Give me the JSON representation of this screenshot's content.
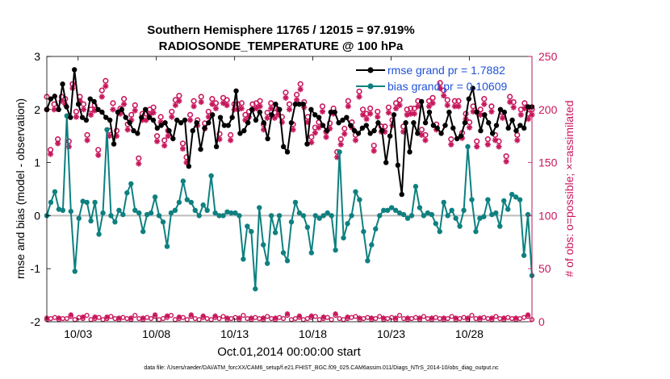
{
  "chart_data": {
    "type": "line",
    "title_line1": "Southern Hemisphere 11765 / 12015 = 97.919%",
    "title_line2": "RADIOSONDE_TEMPERATURE @ 100 hPa",
    "xlabel": "Oct.01,2014 00:00:00 start",
    "ylabel_left": "rmse and bias (model - observation)",
    "ylabel_right": "# of obs: o=possible; ×=assimilated",
    "ylim_left": [
      -2,
      3
    ],
    "ylim_right": [
      0,
      250
    ],
    "xlim": [
      1.0,
      32.0
    ],
    "xticks": [
      3,
      8,
      13,
      18,
      23,
      28
    ],
    "xtick_labels": [
      "10/03",
      "10/08",
      "10/13",
      "10/18",
      "10/23",
      "10/28"
    ],
    "yticks_left": [
      "-2",
      "-1",
      "0",
      "1",
      "2",
      "3"
    ],
    "yticks_right": [
      "0",
      "50",
      "100",
      "150",
      "200",
      "250"
    ],
    "grid": false,
    "legend_position": "top-right",
    "footnote": "data file: /Users/raeder/DAI/ATM_forcXX/CAM6_setup/f.e21.FHIST_BGC.f09_025.CAM6assim.011/Diags_NTrS_2014-10/obs_diag_output.nc",
    "colors": {
      "rmse": "#000000",
      "bias": "#0e8080",
      "obs": "#c8175d",
      "zero_line": "#bcbcbc"
    },
    "series": [
      {
        "name": "rmse grand pr = 1.7882",
        "axis": "left",
        "values": [
          2.0,
          2.2,
          2.25,
          2.0,
          2.48,
          2.05,
          1.85,
          2.75,
          2.1,
          1.85,
          1.8,
          2.2,
          2.15,
          2.0,
          1.95,
          1.85,
          1.8,
          1.35,
          1.95,
          2.0,
          1.85,
          1.75,
          1.6,
          1.55,
          1.85,
          2.0,
          1.85,
          1.8,
          1.65,
          1.7,
          1.75,
          1.6,
          1.45,
          1.8,
          1.75,
          1.8,
          0.93,
          1.6,
          1.75,
          1.25,
          1.65,
          1.75,
          1.9,
          1.3,
          1.85,
          1.7,
          1.7,
          1.85,
          2.35,
          1.55,
          1.6,
          1.75,
          2.0,
          1.8,
          1.95,
          1.75,
          1.45,
          1.9,
          2.1,
          2.0,
          1.3,
          1.2,
          1.75,
          2.1,
          2.1,
          2.1,
          1.35,
          2.0,
          1.9,
          1.85,
          1.7,
          1.6,
          1.95,
          1.95,
          1.75,
          1.8,
          1.85,
          1.7,
          1.6,
          1.55,
          1.65,
          1.7,
          1.55,
          1.6,
          1.75,
          1.6,
          1.0,
          1.5,
          1.9,
          0.95,
          0.4,
          1.75,
          1.2,
          1.75,
          1.55,
          2.15,
          1.75,
          1.95,
          1.7,
          1.65,
          1.55,
          1.7,
          1.95,
          1.65,
          1.45,
          1.5,
          1.75,
          2.2,
          2.4,
          1.95,
          1.6,
          1.9,
          1.75,
          1.55,
          1.7,
          2.0,
          1.95,
          1.65,
          1.8,
          1.6,
          1.7,
          1.65,
          2.05,
          2.05
        ]
      },
      {
        "name": "bias grand pr = 0.10609",
        "axis": "left",
        "values": [
          0.0,
          0.25,
          0.45,
          0.12,
          0.1,
          1.88,
          0.08,
          -1.05,
          -0.05,
          0.27,
          0.25,
          -0.1,
          0.25,
          -0.35,
          0.05,
          1.62,
          0.0,
          -0.12,
          0.1,
          0.02,
          0.43,
          0.6,
          0.1,
          0.05,
          -0.3,
          0.02,
          0.05,
          0.35,
          0.0,
          -0.12,
          -0.58,
          0.05,
          0.1,
          0.25,
          0.65,
          0.3,
          0.25,
          0.1,
          0.0,
          0.2,
          0.1,
          0.75,
          0.05,
          0.0,
          0.0,
          0.07,
          0.05,
          0.05,
          0.0,
          -0.82,
          -0.2,
          -0.3,
          -1.38,
          0.15,
          -0.55,
          -0.9,
          0.0,
          -0.32,
          0.0,
          -0.7,
          -0.85,
          -0.12,
          0.25,
          0.05,
          0.0,
          -0.22,
          -0.7,
          0.0,
          -0.05,
          0.0,
          0.05,
          0.0,
          -0.65,
          1.2,
          -0.42,
          -0.15,
          0.0,
          0.45,
          0.3,
          -0.3,
          -0.85,
          -0.55,
          -0.25,
          0.0,
          0.1,
          0.1,
          0.15,
          0.1,
          0.05,
          0.02,
          -0.05,
          0.0,
          0.55,
          0.15,
          0.0,
          0.05,
          0.02,
          -0.15,
          -0.3,
          0.25,
          0.0,
          0.1,
          -0.05,
          -0.2,
          0.1,
          1.3,
          0.3,
          -0.3,
          -0.05,
          -0.02,
          0.3,
          0.02,
          0.05,
          -0.2,
          0.28,
          0.12,
          0.4,
          0.35,
          0.3,
          -0.75,
          0.02,
          -1.13
        ]
      },
      {
        "name": "obs possible",
        "axis": "right",
        "marker": "o",
        "values": [
          212,
          162,
          205,
          172,
          212,
          210,
          170,
          224,
          198,
          212,
          205,
          176,
          200,
          204,
          162,
          218,
          227,
          180,
          206,
          180,
          201,
          210,
          186,
          195,
          204,
          154,
          196,
          196,
          200,
          202,
          175,
          193,
          171,
          180,
          198,
          209,
          213,
          168,
          155,
          195,
          208,
          190,
          212,
          187,
          198,
          210,
          206,
          177,
          211,
          209,
          176,
          205,
          205,
          206,
          195,
          198,
          205,
          206,
          208,
          186,
          197,
          206,
          197,
          200,
          193,
          216,
          205,
          186,
          214,
          224,
          207,
          193,
          174,
          183,
          188,
          203,
          179,
          187,
          201,
          160,
          172,
          182,
          208,
          188,
          176,
          217,
          200,
          196,
          201,
          166,
          198,
          184,
          184,
          202,
          190,
          206,
          209,
          184,
          200,
          201,
          201,
          208,
          181,
          176,
          208,
          211,
          186,
          225,
          218,
          209,
          172,
          208,
          208,
          178,
          196,
          188,
          203,
          170,
          200,
          210,
          172,
          203,
          176,
          170,
          197,
          156,
          212,
          207,
          176,
          200,
          206,
          196,
          200
        ]
      },
      {
        "name": "obs assimilated",
        "axis": "right",
        "marker": "*",
        "values": [
          200,
          158,
          200,
          168,
          208,
          205,
          165,
          220,
          193,
          208,
          200,
          171,
          195,
          199,
          157,
          212,
          222,
          175,
          200,
          175,
          196,
          205,
          181,
          190,
          199,
          149,
          190,
          190,
          195,
          197,
          170,
          188,
          166,
          175,
          193,
          204,
          208,
          163,
          150,
          190,
          203,
          185,
          207,
          182,
          193,
          205,
          201,
          172,
          206,
          204,
          171,
          200,
          200,
          201,
          190,
          193,
          200,
          201,
          203,
          181,
          192,
          201,
          192,
          195,
          188,
          211,
          200,
          181,
          209,
          219,
          202,
          188,
          169,
          178,
          183,
          198,
          174,
          182,
          196,
          155,
          167,
          177,
          203,
          183,
          171,
          212,
          195,
          191,
          196,
          161,
          193,
          179,
          179,
          197,
          185,
          201,
          204,
          179,
          195,
          196,
          196,
          203,
          176,
          171,
          203,
          206,
          181,
          220,
          213,
          204,
          167,
          203,
          203,
          173,
          191,
          183,
          198,
          165,
          195,
          205,
          167,
          198,
          171,
          165,
          192,
          151,
          207,
          202,
          171,
          195,
          201,
          191,
          195
        ]
      }
    ],
    "bottom_obs_counts": [
      2,
      3,
      4,
      2,
      3,
      3,
      5,
      2,
      4,
      3,
      6,
      2,
      3,
      4,
      2,
      3,
      5,
      3,
      2,
      4,
      3,
      2,
      6,
      3,
      2,
      4,
      3,
      5,
      2,
      3,
      4,
      6,
      2,
      3,
      4,
      2,
      5,
      3,
      2,
      4,
      3,
      2,
      4,
      3,
      5,
      2,
      3,
      4,
      2,
      6,
      3,
      2,
      4,
      3,
      2,
      5,
      3,
      2,
      4,
      3,
      6,
      2,
      3,
      4,
      2,
      3,
      4,
      5,
      2,
      3,
      4,
      2,
      6,
      3,
      2,
      3,
      4,
      5,
      2,
      3,
      4,
      2,
      3,
      5,
      2,
      3,
      4,
      2,
      6,
      3,
      2,
      3,
      4,
      2,
      5,
      3,
      2,
      4,
      3,
      2,
      3,
      5,
      2,
      3,
      4,
      2,
      6,
      3,
      2,
      4,
      3,
      2,
      5,
      3,
      2,
      4,
      3,
      2,
      3,
      4,
      5,
      2
    ]
  }
}
